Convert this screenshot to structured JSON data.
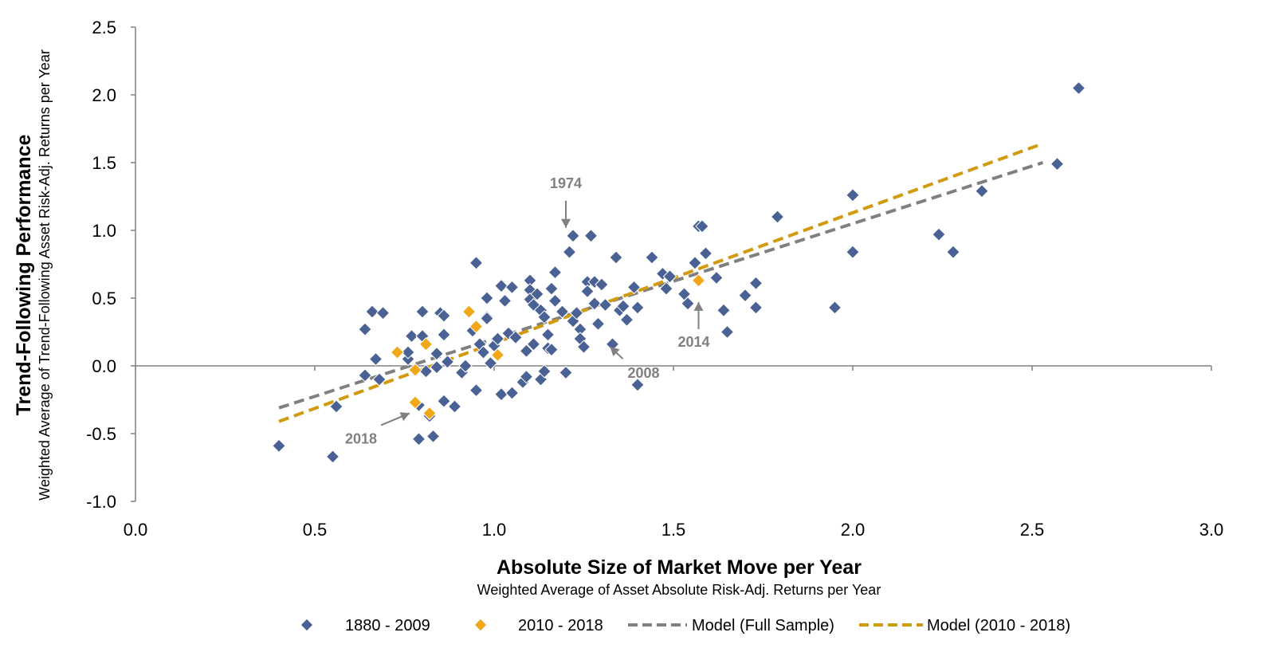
{
  "chart_data": {
    "type": "scatter",
    "title": "",
    "xlabel": "Absolute Size of Market Move per Year",
    "xlabel_sub": "Weighted Average of Asset Absolute Risk-Adj. Returns per Year",
    "ylabel": "Trend-Following Performance",
    "ylabel_sub": "Weighted Average of Trend-Following Asset Risk-Adj. Returns per Year",
    "xlim": [
      0.0,
      3.0
    ],
    "ylim": [
      -1.0,
      2.5
    ],
    "xticks": [
      "0.0",
      "0.5",
      "1.0",
      "1.5",
      "2.0",
      "2.5",
      "3.0"
    ],
    "yticks": [
      "2.5",
      "2.0",
      "1.5",
      "1.0",
      "0.5",
      "0.0",
      "-0.5",
      "-1.0"
    ],
    "grid": false,
    "legend_position": "bottom",
    "colors": {
      "full": "#4a6194",
      "recent": "#f0a81a",
      "model_full": "#808080",
      "model_recent": "#d29a0e"
    },
    "series": [
      {
        "name": "1880 - 2009",
        "kind": "points",
        "marker": "diamond",
        "points": [
          [
            0.4,
            -0.59
          ],
          [
            0.55,
            -0.67
          ],
          [
            0.56,
            -0.3
          ],
          [
            0.64,
            -0.07
          ],
          [
            0.64,
            0.27
          ],
          [
            0.66,
            0.4
          ],
          [
            0.67,
            0.05
          ],
          [
            0.68,
            -0.1
          ],
          [
            0.69,
            0.39
          ],
          [
            0.76,
            0.05
          ],
          [
            0.76,
            0.1
          ],
          [
            0.77,
            0.22
          ],
          [
            0.79,
            -0.29
          ],
          [
            0.79,
            -0.54
          ],
          [
            0.8,
            0.22
          ],
          [
            0.8,
            0.4
          ],
          [
            0.81,
            -0.04
          ],
          [
            0.82,
            -0.37
          ],
          [
            0.83,
            -0.52
          ],
          [
            0.84,
            0.09
          ],
          [
            0.84,
            -0.01
          ],
          [
            0.85,
            0.39
          ],
          [
            0.86,
            0.23
          ],
          [
            0.86,
            0.37
          ],
          [
            0.86,
            -0.26
          ],
          [
            0.87,
            0.03
          ],
          [
            0.89,
            -0.3
          ],
          [
            0.91,
            -0.05
          ],
          [
            0.92,
            0.0
          ],
          [
            0.93,
            0.4
          ],
          [
            0.94,
            0.26
          ],
          [
            0.95,
            0.76
          ],
          [
            0.95,
            -0.18
          ],
          [
            0.96,
            0.16
          ],
          [
            0.97,
            0.1
          ],
          [
            0.98,
            0.36
          ],
          [
            0.98,
            0.35
          ],
          [
            0.98,
            0.5
          ],
          [
            0.99,
            0.02
          ],
          [
            1.0,
            0.15
          ],
          [
            1.01,
            0.2
          ],
          [
            1.02,
            0.59
          ],
          [
            1.02,
            -0.21
          ],
          [
            1.03,
            0.48
          ],
          [
            1.04,
            0.24
          ],
          [
            1.05,
            0.58
          ],
          [
            1.05,
            -0.2
          ],
          [
            1.06,
            0.21
          ],
          [
            1.08,
            -0.12
          ],
          [
            1.09,
            0.11
          ],
          [
            1.09,
            -0.08
          ],
          [
            1.1,
            0.63
          ],
          [
            1.1,
            0.56
          ],
          [
            1.1,
            0.49
          ],
          [
            1.11,
            0.16
          ],
          [
            1.11,
            0.45
          ],
          [
            1.12,
            0.53
          ],
          [
            1.13,
            0.41
          ],
          [
            1.13,
            -0.1
          ],
          [
            1.14,
            0.36
          ],
          [
            1.14,
            -0.04
          ],
          [
            1.15,
            0.13
          ],
          [
            1.15,
            0.23
          ],
          [
            1.16,
            0.57
          ],
          [
            1.16,
            0.12
          ],
          [
            1.17,
            0.48
          ],
          [
            1.17,
            0.69
          ],
          [
            1.19,
            0.4
          ],
          [
            1.2,
            -0.05
          ],
          [
            1.21,
            0.84
          ],
          [
            1.22,
            0.96
          ],
          [
            1.22,
            0.33
          ],
          [
            1.23,
            0.39
          ],
          [
            1.24,
            0.27
          ],
          [
            1.24,
            0.2
          ],
          [
            1.25,
            0.14
          ],
          [
            1.26,
            0.62
          ],
          [
            1.26,
            0.55
          ],
          [
            1.27,
            0.96
          ],
          [
            1.28,
            0.62
          ],
          [
            1.28,
            0.46
          ],
          [
            1.29,
            0.31
          ],
          [
            1.3,
            0.6
          ],
          [
            1.31,
            0.45
          ],
          [
            1.33,
            0.16
          ],
          [
            1.34,
            0.8
          ],
          [
            1.35,
            0.41
          ],
          [
            1.36,
            0.44
          ],
          [
            1.37,
            0.34
          ],
          [
            1.39,
            0.58
          ],
          [
            1.4,
            -0.14
          ],
          [
            1.4,
            0.43
          ],
          [
            1.44,
            0.8
          ],
          [
            1.47,
            0.68
          ],
          [
            1.48,
            0.57
          ],
          [
            1.49,
            0.66
          ],
          [
            1.53,
            0.53
          ],
          [
            1.54,
            0.46
          ],
          [
            1.56,
            0.76
          ],
          [
            1.57,
            1.03
          ],
          [
            1.58,
            1.03
          ],
          [
            1.59,
            0.83
          ],
          [
            1.62,
            0.65
          ],
          [
            1.64,
            0.41
          ],
          [
            1.65,
            0.25
          ],
          [
            1.7,
            0.52
          ],
          [
            1.73,
            0.61
          ],
          [
            1.73,
            0.43
          ],
          [
            1.79,
            1.1
          ],
          [
            1.95,
            0.43
          ],
          [
            2.0,
            0.84
          ],
          [
            2.0,
            1.26
          ],
          [
            2.24,
            0.97
          ],
          [
            2.28,
            0.84
          ],
          [
            2.36,
            1.29
          ],
          [
            2.57,
            1.49
          ],
          [
            2.63,
            2.05
          ]
        ]
      },
      {
        "name": "2010 - 2018",
        "kind": "points",
        "marker": "diamond",
        "points": [
          [
            0.73,
            0.1
          ],
          [
            0.78,
            -0.03
          ],
          [
            0.78,
            -0.27
          ],
          [
            0.81,
            0.16
          ],
          [
            0.82,
            -0.35
          ],
          [
            0.93,
            0.4
          ],
          [
            0.95,
            0.29
          ],
          [
            1.01,
            0.08
          ],
          [
            1.57,
            0.63
          ]
        ]
      },
      {
        "name": "Model (Full Sample)",
        "kind": "line",
        "dash": true,
        "points": [
          [
            0.4,
            -0.31
          ],
          [
            2.53,
            1.5
          ]
        ]
      },
      {
        "name": "Model (2010 - 2018)",
        "kind": "line",
        "dash": true,
        "points": [
          [
            0.4,
            -0.41
          ],
          [
            2.53,
            1.64
          ]
        ]
      }
    ],
    "annotations": [
      {
        "text": "1974",
        "x": 1.2,
        "y": 0.96,
        "direction": "down"
      },
      {
        "text": "2008",
        "x": 1.31,
        "y": 0.17,
        "direction": "up-left"
      },
      {
        "text": "2014",
        "x": 1.57,
        "y": 0.53,
        "direction": "up"
      },
      {
        "text": "2018",
        "x": 0.78,
        "y": -0.32,
        "direction": "right"
      }
    ]
  }
}
